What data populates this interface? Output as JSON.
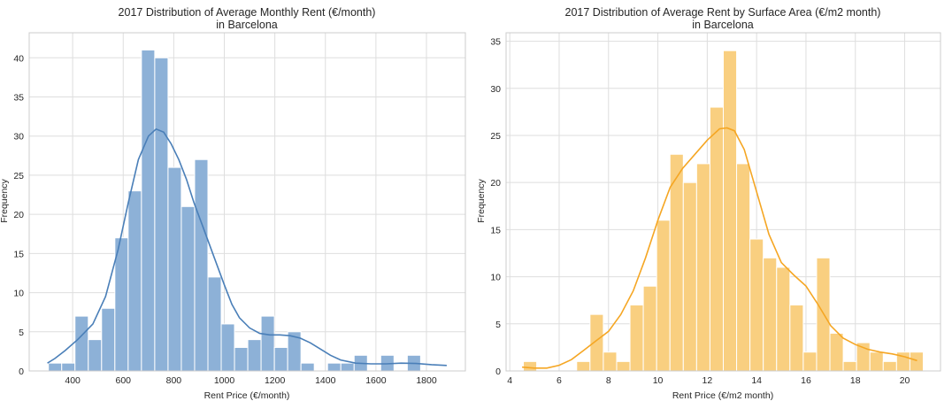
{
  "chart_data": [
    {
      "type": "histogram",
      "title": "2017 Distribution of Average Monthly Rent (€/month)",
      "subtitle": "in Barcelona",
      "xlabel": "Rent Price (€/month)",
      "ylabel": "Frequency",
      "xlim": [
        228,
        1954
      ],
      "ylim": [
        0,
        43.2
      ],
      "xticks": [
        400,
        600,
        800,
        1000,
        1200,
        1400,
        1600,
        1800
      ],
      "yticks": [
        0,
        5,
        10,
        15,
        20,
        25,
        30,
        35,
        40
      ],
      "grid": true,
      "color": "#4a7fb8",
      "bar_fill": "#8db1d7",
      "bin_start": 304,
      "bin_width": 52.6,
      "values": [
        1,
        1,
        7,
        4,
        8,
        17,
        23,
        41,
        40,
        26,
        21,
        27,
        12,
        6,
        3,
        4,
        7,
        3,
        5,
        1,
        0,
        1,
        1,
        2,
        0,
        2,
        0,
        2
      ],
      "kde": [
        [
          300,
          1.0
        ],
        [
          330,
          1.6
        ],
        [
          370,
          2.6
        ],
        [
          420,
          4.0
        ],
        [
          480,
          6.0
        ],
        [
          530,
          9.5
        ],
        [
          580,
          15.5
        ],
        [
          620,
          21.5
        ],
        [
          660,
          27.0
        ],
        [
          700,
          30.0
        ],
        [
          730,
          30.9
        ],
        [
          760,
          30.5
        ],
        [
          790,
          29.0
        ],
        [
          820,
          27.0
        ],
        [
          850,
          24.5
        ],
        [
          880,
          21.5
        ],
        [
          920,
          18.0
        ],
        [
          960,
          14.5
        ],
        [
          1000,
          11.0
        ],
        [
          1030,
          8.5
        ],
        [
          1060,
          6.8
        ],
        [
          1100,
          5.5
        ],
        [
          1140,
          4.8
        ],
        [
          1180,
          4.6
        ],
        [
          1220,
          4.6
        ],
        [
          1260,
          4.5
        ],
        [
          1300,
          4.2
        ],
        [
          1340,
          3.6
        ],
        [
          1380,
          2.8
        ],
        [
          1420,
          2.0
        ],
        [
          1460,
          1.4
        ],
        [
          1520,
          1.0
        ],
        [
          1580,
          0.9
        ],
        [
          1640,
          0.9
        ],
        [
          1700,
          1.0
        ],
        [
          1760,
          0.95
        ],
        [
          1820,
          0.8
        ],
        [
          1880,
          0.7
        ]
      ]
    },
    {
      "type": "histogram",
      "title": "2017 Distribution of Average Rent by Surface Area (€/m2 month)",
      "subtitle": "in Barcelona",
      "xlabel": "Rent Price (€/m2 month)",
      "ylabel": "Frequency",
      "xlim": [
        3.85,
        21.45
      ],
      "ylim": [
        0,
        35.9
      ],
      "xticks": [
        4,
        6,
        8,
        10,
        12,
        14,
        16,
        18,
        20
      ],
      "yticks": [
        0,
        5,
        10,
        15,
        20,
        25,
        30,
        35
      ],
      "grid": true,
      "color": "#f5a623",
      "bar_fill": "#f9cf80",
      "bin_start": 4.55,
      "bin_width": 0.54,
      "values": [
        1,
        0,
        0,
        0,
        1,
        6,
        2,
        1,
        7,
        9,
        16,
        23,
        20,
        22,
        28,
        34,
        22,
        14,
        12,
        11,
        7,
        2,
        12,
        4,
        1,
        3,
        2,
        1,
        2,
        2
      ],
      "kde": [
        [
          4.5,
          0.4
        ],
        [
          5.0,
          0.3
        ],
        [
          5.5,
          0.3
        ],
        [
          6.0,
          0.6
        ],
        [
          6.5,
          1.2
        ],
        [
          7.0,
          2.2
        ],
        [
          7.5,
          3.2
        ],
        [
          8.0,
          4.2
        ],
        [
          8.5,
          6.0
        ],
        [
          9.0,
          8.5
        ],
        [
          9.5,
          12.0
        ],
        [
          10.0,
          16.0
        ],
        [
          10.5,
          19.5
        ],
        [
          11.0,
          21.5
        ],
        [
          11.5,
          23.0
        ],
        [
          12.0,
          24.5
        ],
        [
          12.5,
          25.7
        ],
        [
          12.8,
          25.8
        ],
        [
          13.1,
          25.5
        ],
        [
          13.5,
          23.5
        ],
        [
          14.0,
          19.0
        ],
        [
          14.5,
          14.5
        ],
        [
          15.0,
          11.5
        ],
        [
          15.5,
          10.2
        ],
        [
          16.0,
          9.0
        ],
        [
          16.5,
          7.0
        ],
        [
          17.0,
          4.8
        ],
        [
          17.5,
          3.5
        ],
        [
          18.0,
          2.8
        ],
        [
          18.5,
          2.3
        ],
        [
          19.0,
          2.0
        ],
        [
          19.5,
          1.8
        ],
        [
          20.0,
          1.5
        ],
        [
          20.5,
          1.1
        ]
      ]
    }
  ]
}
